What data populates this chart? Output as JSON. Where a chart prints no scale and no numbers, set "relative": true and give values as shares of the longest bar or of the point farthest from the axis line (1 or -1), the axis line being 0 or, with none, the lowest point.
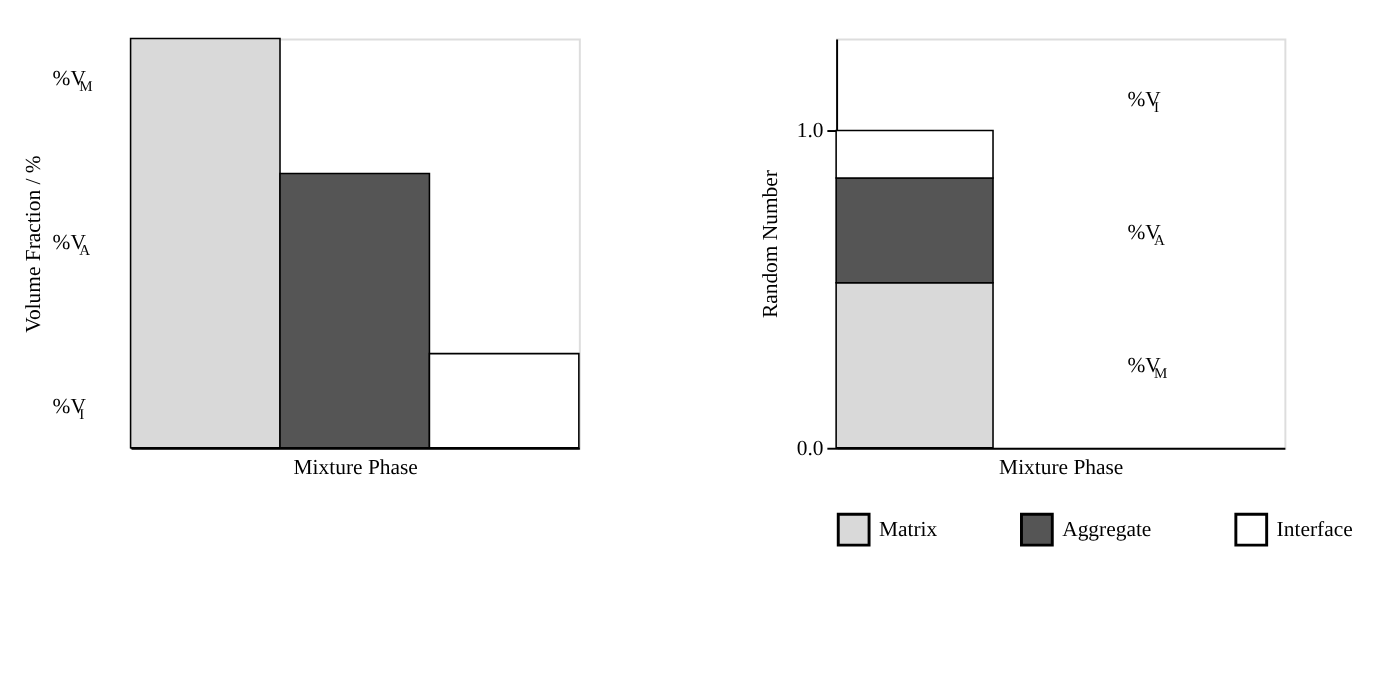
{
  "chart_data": [
    {
      "type": "bar",
      "relative": true,
      "xlabel": "Mixture Phase",
      "ylabel": "Volume Fraction / %",
      "categories": [
        null,
        null,
        null
      ],
      "values": [
        1,
        0.67,
        0.23
      ],
      "colors": [
        "#d9d9d9",
        "#555555",
        "#ffffff"
      ],
      "annotations": [
        "%V$_{M}$",
        "%V$_{A}$",
        "%V$_{I}$"
      ],
      "tick_labels": false
    },
    {
      "type": "bar",
      "stacked": true,
      "xlabel": "Mixture Phase",
      "ylabel": "Random Number",
      "categories": [
        null
      ],
      "series": [
        {
          "name": "Matrix",
          "color": "#d9d9d9",
          "values": [
            0.52
          ]
        },
        {
          "name": "Aggregate",
          "color": "#555555",
          "values": [
            0.33
          ]
        },
        {
          "name": "Interface",
          "color": "#ffffff",
          "values": [
            0.15
          ]
        }
      ],
      "ylim": [
        0,
        1.29
      ],
      "yticks": [
        {
          "value": 0,
          "label": "0.0"
        },
        {
          "value": 1,
          "label": "1.0"
        }
      ],
      "annotations": [
        "%V$_{I}$",
        "%V$_{A}$",
        "%V$_{M}$"
      ],
      "tick_labels": "y",
      "legend": "bottom"
    }
  ]
}
